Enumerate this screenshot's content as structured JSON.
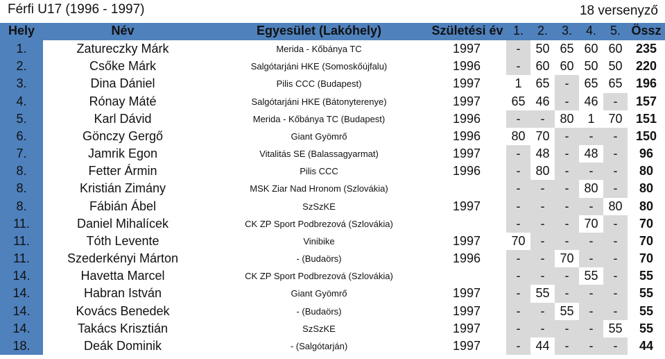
{
  "title": "Férfi U17 (1996 - 1997)",
  "participants": "18 versenyző",
  "headers": {
    "place": "Hely",
    "name": "Név",
    "club": "Egyesület (Lakóhely)",
    "birth_year": "Születési év",
    "results": [
      "1.",
      "2.",
      "3.",
      "4.",
      "5."
    ],
    "total": "Össz"
  },
  "colors": {
    "header": "#4f81bd",
    "shade": "#d9d9d9"
  },
  "rows": [
    {
      "place": "1.",
      "name": "Zatureczky Márk",
      "club": "Merida - Kőbánya TC",
      "year": "1997",
      "results": [
        "-",
        "50",
        "65",
        "60",
        "60"
      ],
      "total": "235"
    },
    {
      "place": "2.",
      "name": "Csőke Márk",
      "club": "Salgótarjáni HKE (Somoskőújfalu)",
      "year": "1996",
      "results": [
        "-",
        "60",
        "60",
        "50",
        "50"
      ],
      "total": "220"
    },
    {
      "place": "3.",
      "name": "Dina Dániel",
      "club": "Pilis CCC (Budapest)",
      "year": "1997",
      "results": [
        "1",
        "65",
        "-",
        "65",
        "65"
      ],
      "total": "196"
    },
    {
      "place": "4.",
      "name": "Rónay Máté",
      "club": "Salgótarjáni HKE (Bátonyterenye)",
      "year": "1997",
      "results": [
        "65",
        "46",
        "-",
        "46",
        "-"
      ],
      "total": "157"
    },
    {
      "place": "5.",
      "name": "Karl Dávid",
      "club": "Merida - Kőbánya TC (Budapest)",
      "year": "1996",
      "results": [
        "-",
        "-",
        "80",
        "1",
        "70"
      ],
      "total": "151"
    },
    {
      "place": "6.",
      "name": "Gönczy Gergő",
      "club": "Giant Gyömrő",
      "year": "1996",
      "results": [
        "80",
        "70",
        "-",
        "-",
        "-"
      ],
      "total": "150"
    },
    {
      "place": "7.",
      "name": "Jamrik Egon",
      "club": "Vitalitás SE (Balassagyarmat)",
      "year": "1997",
      "results": [
        "-",
        "48",
        "-",
        "48",
        "-"
      ],
      "total": "96"
    },
    {
      "place": "8.",
      "name": "Fetter Ármin",
      "club": "Pilis CCC",
      "year": "1996",
      "results": [
        "-",
        "80",
        "-",
        "-",
        "-"
      ],
      "total": "80"
    },
    {
      "place": "8.",
      "name": "Kristián Zimány",
      "club": "MSK Ziar Nad Hronom (Szlovákia)",
      "year": "",
      "results": [
        "-",
        "-",
        "-",
        "80",
        "-"
      ],
      "total": "80"
    },
    {
      "place": "8.",
      "name": "Fábián Ábel",
      "club": "SzSzKE",
      "year": "1997",
      "results": [
        "-",
        "-",
        "-",
        "-",
        "80"
      ],
      "total": "80"
    },
    {
      "place": "11.",
      "name": "Daniel Mihalícek",
      "club": "CK ZP Sport Podbrezová (Szlovákia)",
      "year": "",
      "results": [
        "-",
        "-",
        "-",
        "70",
        "-"
      ],
      "total": "70"
    },
    {
      "place": "11.",
      "name": "Tóth Levente",
      "club": "Vinibike",
      "year": "1997",
      "results": [
        "70",
        "-",
        "-",
        "-",
        "-"
      ],
      "total": "70"
    },
    {
      "place": "11.",
      "name": "Szederkényi Márton",
      "club": "- (Budaörs)",
      "year": "1996",
      "results": [
        "-",
        "-",
        "70",
        "-",
        "-"
      ],
      "total": "70"
    },
    {
      "place": "14.",
      "name": "Havetta Marcel",
      "club": "CK ZP Sport Podbrezová (Szlovákia)",
      "year": "",
      "results": [
        "-",
        "-",
        "-",
        "55",
        "-"
      ],
      "total": "55"
    },
    {
      "place": "14.",
      "name": "Habran István",
      "club": "Giant Gyömrő",
      "year": "1997",
      "results": [
        "-",
        "55",
        "-",
        "-",
        "-"
      ],
      "total": "55"
    },
    {
      "place": "14.",
      "name": "Kovács Benedek",
      "club": "- (Budaörs)",
      "year": "1997",
      "results": [
        "-",
        "-",
        "55",
        "-",
        "-"
      ],
      "total": "55"
    },
    {
      "place": "14.",
      "name": "Takács Krisztián",
      "club": "SzSzKE",
      "year": "1997",
      "results": [
        "-",
        "-",
        "-",
        "-",
        "55"
      ],
      "total": "55"
    },
    {
      "place": "18.",
      "name": "Deák Dominik",
      "club": "- (Salgótarján)",
      "year": "1997",
      "results": [
        "-",
        "44",
        "-",
        "-",
        "-"
      ],
      "total": "44"
    }
  ]
}
